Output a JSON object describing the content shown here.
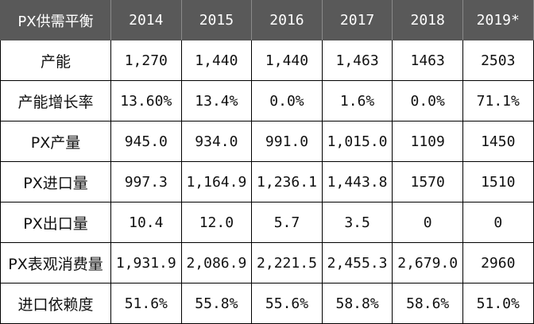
{
  "table": {
    "header": {
      "label": "PX供需平衡",
      "years": [
        "2014",
        "2015",
        "2016",
        "2017",
        "2018",
        "2019*"
      ]
    },
    "rows": [
      {
        "label": "产能",
        "values": [
          "1,270",
          "1,440",
          "1,440",
          "1,463",
          "1463",
          "2503"
        ]
      },
      {
        "label": "产能增长率",
        "values": [
          "13.60%",
          "13.4%",
          "0.0%",
          "1.6%",
          "0.0%",
          "71.1%"
        ]
      },
      {
        "label": "PX产量",
        "values": [
          "945.0",
          "934.0",
          "991.0",
          "1,015.0",
          "1109",
          "1450"
        ]
      },
      {
        "label": "PX进口量",
        "values": [
          "997.3",
          "1,164.9",
          "1,236.1",
          "1,443.8",
          "1570",
          "1510"
        ]
      },
      {
        "label": "PX出口量",
        "values": [
          "10.4",
          "12.0",
          "5.7",
          "3.5",
          "0",
          "0"
        ]
      },
      {
        "label": "PX表观消费量",
        "values": [
          "1,931.9",
          "2,086.9",
          "2,221.5",
          "2,455.3",
          "2,679.0",
          "2960"
        ]
      },
      {
        "label": "进口依赖度",
        "values": [
          "51.6%",
          "55.8%",
          "55.6%",
          "58.8%",
          "58.6%",
          "51.0%"
        ]
      }
    ]
  }
}
